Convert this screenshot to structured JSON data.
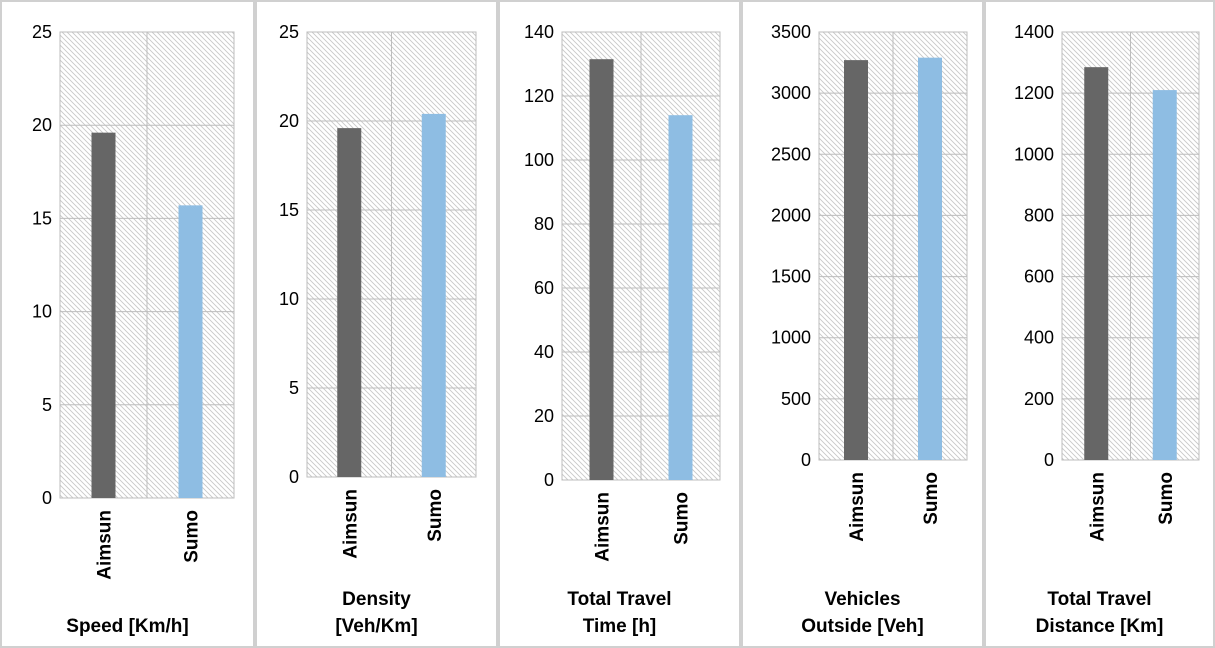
{
  "colors": {
    "aimsun": "#666666",
    "sumo": "#8ebde3",
    "plot_bg": "#ffffff",
    "hatch": "#c8c8c8",
    "grid": "#bdbdbd",
    "panel_border": "#d0d0d0"
  },
  "chart_data": [
    {
      "type": "bar",
      "categories": [
        "Aimsun",
        "Sumo"
      ],
      "values": [
        19.6,
        15.7
      ],
      "xlabel": "Speed [Km/h]",
      "ylabel": "",
      "ylim": [
        0,
        25
      ],
      "yticks": [
        "0",
        "5",
        "10",
        "15",
        "20",
        "25"
      ],
      "grid": true
    },
    {
      "type": "bar",
      "categories": [
        "Aimsun",
        "Sumo"
      ],
      "values": [
        19.6,
        20.4
      ],
      "xlabel": "Density\n[Veh/Km]",
      "ylabel": "",
      "ylim": [
        0,
        25
      ],
      "yticks": [
        "0",
        "5",
        "10",
        "15",
        "20",
        "25"
      ],
      "grid": true
    },
    {
      "type": "bar",
      "categories": [
        "Aimsun",
        "Sumo"
      ],
      "values": [
        131.5,
        114
      ],
      "xlabel": "Total Travel\nTime [h]",
      "ylabel": "",
      "ylim": [
        0,
        140
      ],
      "yticks": [
        "0",
        "20",
        "40",
        "60",
        "80",
        "100",
        "120",
        "140"
      ],
      "grid": true
    },
    {
      "type": "bar",
      "categories": [
        "Aimsun",
        "Sumo"
      ],
      "values": [
        3270,
        3290
      ],
      "xlabel": "Vehicles\nOutside [Veh]",
      "ylabel": "",
      "ylim": [
        0,
        3500
      ],
      "yticks": [
        "0",
        "500",
        "1000",
        "1500",
        "2000",
        "2500",
        "3000",
        "3500"
      ],
      "grid": true
    },
    {
      "type": "bar",
      "categories": [
        "Aimsun",
        "Sumo"
      ],
      "values": [
        1285,
        1210
      ],
      "xlabel": "Total Travel\nDistance [Km]",
      "ylabel": "",
      "ylim": [
        0,
        1400
      ],
      "yticks": [
        "0",
        "200",
        "400",
        "600",
        "800",
        "1000",
        "1200",
        "1400"
      ],
      "grid": true
    }
  ]
}
